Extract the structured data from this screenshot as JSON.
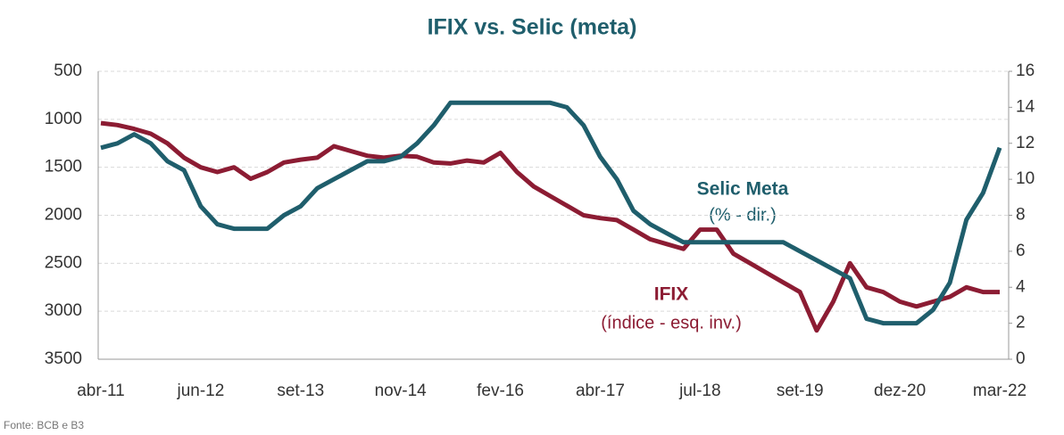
{
  "chart_data": {
    "type": "line",
    "title": "IFIX vs. Selic (meta)",
    "source": "Fonte: BCB e B3",
    "categories": [
      "abr-11",
      null,
      null,
      null,
      null,
      null,
      "jun-12",
      null,
      null,
      null,
      null,
      null,
      "set-13",
      null,
      null,
      null,
      null,
      null,
      "nov-14",
      null,
      null,
      null,
      null,
      null,
      "fev-16",
      null,
      null,
      null,
      null,
      null,
      "abr-17",
      null,
      null,
      null,
      null,
      null,
      "jul-18",
      null,
      null,
      null,
      null,
      null,
      "set-19",
      null,
      null,
      null,
      null,
      null,
      "dez-20",
      null,
      null,
      null,
      null,
      null,
      "mar-22"
    ],
    "ylim": [
      3500,
      500
    ],
    "yticks": [
      500,
      1000,
      1500,
      2000,
      2500,
      3000,
      3500
    ],
    "y2lim": [
      0,
      16
    ],
    "y2ticks": [
      0,
      2,
      4,
      6,
      8,
      10,
      12,
      14,
      16
    ],
    "grid": true,
    "series": [
      {
        "name": "IFIX",
        "color": "#8c1c33",
        "axis": "y",
        "values": [
          1040,
          1060,
          1100,
          1150,
          1250,
          1400,
          1500,
          1550,
          1500,
          1620,
          1550,
          1450,
          1420,
          1400,
          1280,
          1330,
          1380,
          1400,
          1380,
          1390,
          1450,
          1460,
          1430,
          1450,
          1350,
          1550,
          1700,
          1800,
          1900,
          2000,
          2030,
          2050,
          2150,
          2250,
          2300,
          2350,
          2150,
          2150,
          2400,
          2500,
          2600,
          2700,
          2800,
          3200,
          2900,
          2500,
          2750,
          2800,
          2900,
          2950,
          2900,
          2850,
          2750,
          2800,
          2800
        ]
      },
      {
        "name": "Selic Meta",
        "color": "#1f5e6c",
        "axis": "y2",
        "values": [
          11.75,
          12,
          12.5,
          12,
          11,
          10.5,
          8.5,
          7.5,
          7.25,
          7.25,
          7.25,
          8,
          8.5,
          9.5,
          10,
          10.5,
          11,
          11,
          11.25,
          12,
          13,
          14.25,
          14.25,
          14.25,
          14.25,
          14.25,
          14.25,
          14.25,
          14,
          13,
          11.25,
          10,
          8.25,
          7.5,
          7,
          6.5,
          6.5,
          6.5,
          6.5,
          6.5,
          6.5,
          6.5,
          6,
          5.5,
          5,
          4.5,
          2.25,
          2,
          2,
          2,
          2.75,
          4.25,
          7.75,
          9.25,
          11.75
        ]
      }
    ],
    "annotations": [
      "Selic Meta",
      "(% - dir.)",
      "IFIX",
      "(índice - esq. inv.)"
    ]
  }
}
